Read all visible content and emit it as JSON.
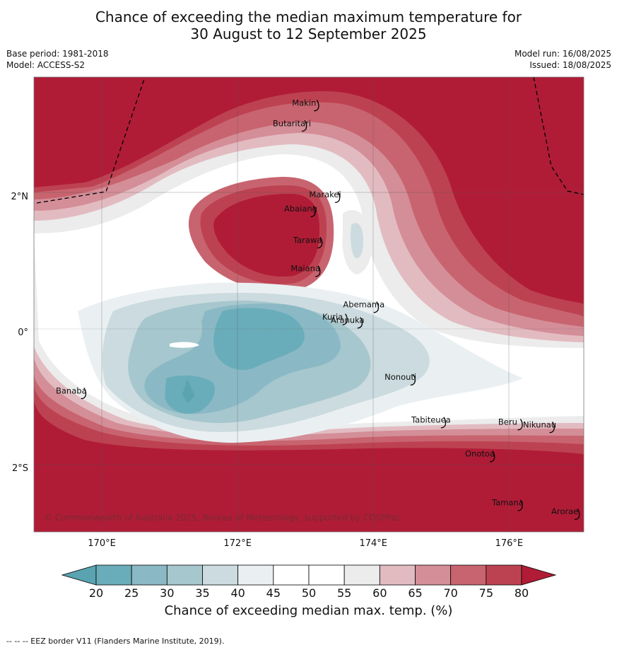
{
  "title": {
    "line1": "Chance of exceeding the median maximum temperature for",
    "line2": "30 August to 12 September 2025"
  },
  "meta": {
    "base_period": "Base period: 1981-2018",
    "model": "Model: ACCESS-S2",
    "model_run": "Model run: 16/08/2025",
    "issued": "Issued: 18/08/2025"
  },
  "map": {
    "lon_range": [
      169.0,
      177.1
    ],
    "lat_range": [
      -2.95,
      3.75
    ],
    "lon_ticks": [
      {
        "value": 170,
        "label": "170°E"
      },
      {
        "value": 172,
        "label": "172°E"
      },
      {
        "value": 174,
        "label": "174°E"
      },
      {
        "value": 176,
        "label": "176°E"
      }
    ],
    "lat_ticks": [
      {
        "value": 2,
        "label": "2°N"
      },
      {
        "value": 0,
        "label": "0°"
      },
      {
        "value": -2,
        "label": "2°S"
      }
    ],
    "places": [
      {
        "name": "Makin",
        "lon": 172.98,
        "lat": 3.37
      },
      {
        "name": "Butaritari",
        "lon": 172.8,
        "lat": 3.07
      },
      {
        "name": "Marakei",
        "lon": 173.29,
        "lat": 2.02
      },
      {
        "name": "Abaiang",
        "lon": 172.93,
        "lat": 1.81
      },
      {
        "name": "Tarawa",
        "lon": 173.03,
        "lat": 1.35
      },
      {
        "name": "Maiana",
        "lon": 173.0,
        "lat": 0.93
      },
      {
        "name": "Abemama",
        "lon": 173.86,
        "lat": 0.4
      },
      {
        "name": "Kuria",
        "lon": 173.4,
        "lat": 0.22
      },
      {
        "name": "Aranuka",
        "lon": 173.62,
        "lat": 0.17
      },
      {
        "name": "Banaba",
        "lon": 169.55,
        "lat": -0.87
      },
      {
        "name": "Nonouti",
        "lon": 174.4,
        "lat": -0.67
      },
      {
        "name": "Tabiteuea",
        "lon": 174.85,
        "lat": -1.3
      },
      {
        "name": "Beru",
        "lon": 175.98,
        "lat": -1.33
      },
      {
        "name": "Nikunau",
        "lon": 176.45,
        "lat": -1.37
      },
      {
        "name": "Onotoa",
        "lon": 175.57,
        "lat": -1.8
      },
      {
        "name": "Tamana",
        "lon": 175.98,
        "lat": -2.52
      },
      {
        "name": "Arorae",
        "lon": 176.82,
        "lat": -2.65
      }
    ],
    "copyright": "© Commonwealth of Australia 2025, Bureau of Meteorology, supported by COSPPac"
  },
  "colorbar": {
    "ticks": [
      "20",
      "25",
      "30",
      "35",
      "40",
      "45",
      "50",
      "55",
      "60",
      "65",
      "70",
      "75",
      "80"
    ],
    "colors": [
      "#5aa3b1",
      "#6aadba",
      "#8ab9c5",
      "#a6c7cd",
      "#cbdbdf",
      "#eaf0f2",
      "#ffffff",
      "#ffffff",
      "#ececec",
      "#e2bbc1",
      "#d48e98",
      "#c8646f",
      "#bd4251",
      "#b01c36"
    ],
    "label": "Chance of exceeding median max. temp. (%)"
  },
  "footer_note": "--  --  -- EEZ border V11 (Flanders Marine Institute, 2019)."
}
